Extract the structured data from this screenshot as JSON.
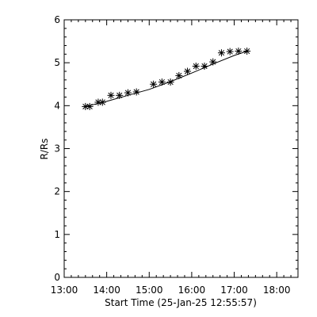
{
  "chart_data": {
    "type": "scatter",
    "title": "",
    "xlabel": "Start Time (25-Jan-25 12:55:57)",
    "ylabel": "R/Rs",
    "x_unit": "time (HH:MM, 25-Jan-25)",
    "xlim": [
      "13:00",
      "18:30"
    ],
    "ylim": [
      0,
      6
    ],
    "x_ticks": [
      "13:00",
      "14:00",
      "15:00",
      "16:00",
      "17:00",
      "18:00"
    ],
    "y_ticks": [
      "0",
      "1",
      "2",
      "3",
      "4",
      "5",
      "6"
    ],
    "grid": false,
    "legend": "none",
    "marker": "asterisk",
    "colors": {
      "axis": "#000000",
      "marker": "#000000",
      "fit_line": "#000000",
      "background": "#ffffff"
    },
    "series": [
      {
        "x": [
          "13:30",
          "13:36",
          "13:48",
          "13:54",
          "14:06",
          "14:18",
          "14:30",
          "14:42",
          "15:06",
          "15:18",
          "15:30",
          "15:42",
          "15:54",
          "16:06",
          "16:18",
          "16:30",
          "16:42",
          "16:54",
          "17:06",
          "17:18"
        ],
        "y": [
          3.98,
          3.98,
          4.08,
          4.08,
          4.24,
          4.24,
          4.3,
          4.32,
          4.5,
          4.55,
          4.55,
          4.7,
          4.8,
          4.92,
          4.92,
          5.02,
          5.23,
          5.26,
          5.27,
          5.27
        ]
      }
    ],
    "fit_line": {
      "x": [
        "13:30",
        "14:00",
        "14:30",
        "15:00",
        "15:30",
        "16:00",
        "16:30",
        "17:00",
        "17:20"
      ],
      "y": [
        3.98,
        4.1,
        4.24,
        4.38,
        4.56,
        4.76,
        4.97,
        5.17,
        5.28
      ]
    }
  }
}
